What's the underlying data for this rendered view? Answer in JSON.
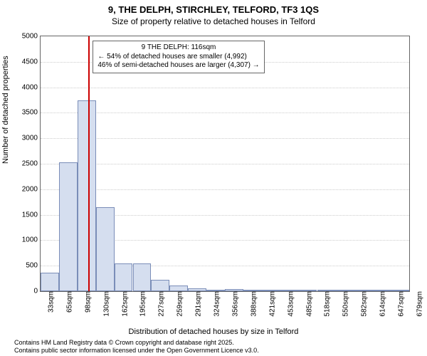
{
  "header": {
    "title": "9, THE DELPH, STIRCHLEY, TELFORD, TF3 1QS",
    "subtitle": "Size of property relative to detached houses in Telford"
  },
  "chart": {
    "type": "histogram",
    "ylabel": "Number of detached properties",
    "xlabel": "Distribution of detached houses by size in Telford",
    "ylim": [
      0,
      5000
    ],
    "ytick_step": 500,
    "yticks": [
      0,
      500,
      1000,
      1500,
      2000,
      2500,
      3000,
      3500,
      4000,
      4500,
      5000
    ],
    "xticks": [
      "33sqm",
      "65sqm",
      "98sqm",
      "130sqm",
      "162sqm",
      "195sqm",
      "227sqm",
      "259sqm",
      "291sqm",
      "324sqm",
      "356sqm",
      "388sqm",
      "421sqm",
      "453sqm",
      "485sqm",
      "518sqm",
      "550sqm",
      "582sqm",
      "614sqm",
      "647sqm",
      "679sqm"
    ],
    "bars": [
      360,
      2530,
      3740,
      1650,
      540,
      540,
      230,
      115,
      60,
      35,
      45,
      15,
      8,
      6,
      5,
      4,
      3,
      3,
      2,
      6
    ],
    "bar_fill": "#d5deef",
    "bar_stroke": "#7a8db8",
    "grid_color": "#cccccc",
    "background_color": "#ffffff",
    "axis_color": "#666666",
    "marker": {
      "position_pct": 13.0,
      "color": "#cc0000"
    },
    "callout": {
      "line1": "9 THE DELPH: 116sqm",
      "line2": "← 54% of detached houses are smaller (4,992)",
      "line3": "46% of semi-detached houses are larger (4,307) →"
    }
  },
  "footer": {
    "line1": "Contains HM Land Registry data © Crown copyright and database right 2025.",
    "line2": "Contains public sector information licensed under the Open Government Licence v3.0."
  }
}
